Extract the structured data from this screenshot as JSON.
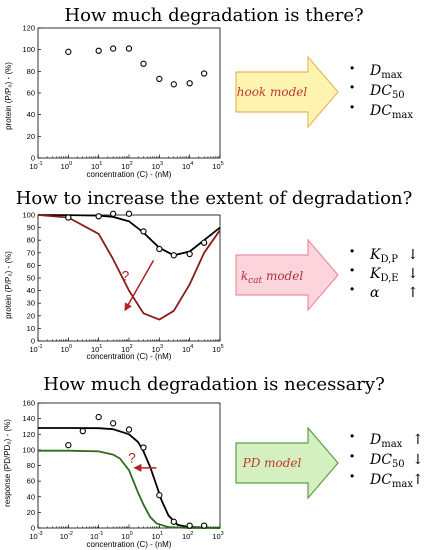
{
  "headings": [
    "How much degradation is there?",
    "How to increase the extent of degradation?",
    "How much degradation is necessary?"
  ],
  "panels": [
    {
      "ylabel": "protein (P/P₀) - (%)",
      "xlabel": "concentration (C) - (nM)",
      "model_label": "hook model",
      "arrow_fill": "#fff3b0",
      "arrow_stroke": "#e8b85c",
      "label_color": "#c0392b",
      "bullets": [
        {
          "main": "D",
          "sub": "max",
          "trend": ""
        },
        {
          "main": "DC",
          "sub": "50",
          "trend": ""
        },
        {
          "main": "DC",
          "sub": "max",
          "trend": ""
        }
      ]
    },
    {
      "ylabel": "protein (P/P₀) - (%)",
      "xlabel": "concentration (C) - (nM)",
      "model_label_k": "k",
      "model_label_sub": "cat",
      "model_label_rest": " model",
      "arrow_fill": "#fcd5dc",
      "arrow_stroke": "#e8909c",
      "label_color": "#b03040",
      "annotation": "?",
      "bullets": [
        {
          "main": "K",
          "sub": "D,P",
          "trend": "↓"
        },
        {
          "main": "K",
          "sub": "D,E",
          "trend": "↓"
        },
        {
          "main": "α",
          "sub": "",
          "trend": "↑"
        }
      ]
    },
    {
      "ylabel": "response (PD/PD₀) - (%)",
      "xlabel": "concentration (C) - (nM)",
      "model_label": "PD model",
      "arrow_fill": "#d4f0c0",
      "arrow_stroke": "#5aa040",
      "label_color": "#c0392b",
      "annotation": "?",
      "bullets": [
        {
          "main": "D",
          "sub": "max",
          "trend": "↑"
        },
        {
          "main": "DC",
          "sub": "50",
          "trend": "↓"
        },
        {
          "main": "DC",
          "sub": "max",
          "trend": "↑"
        }
      ]
    }
  ],
  "chart_data": [
    {
      "type": "scatter",
      "title": "How much degradation is there?",
      "xlabel": "concentration (C) - (nM)",
      "ylabel": "protein (P/P₀) - (%)",
      "x_scale": "log",
      "xlim_exp": [
        -1,
        5
      ],
      "ylim": [
        0,
        120
      ],
      "yticks": [
        0,
        20,
        40,
        60,
        80,
        100,
        120
      ],
      "series": [
        {
          "kind": "points",
          "x": [
            1,
            10,
            30,
            100,
            300,
            1000,
            3000,
            10000,
            30000
          ],
          "y": [
            98,
            99,
            101,
            101,
            87,
            73,
            68,
            69,
            78
          ]
        }
      ]
    },
    {
      "type": "line",
      "title": "How to increase the extent of degradation?",
      "xlabel": "concentration (C) - (nM)",
      "ylabel": "protein (P/P₀) - (%)",
      "x_scale": "log",
      "xlim_exp": [
        -1,
        5
      ],
      "ylim": [
        0,
        100
      ],
      "yticks": [
        0,
        10,
        20,
        30,
        40,
        50,
        60,
        70,
        80,
        90,
        100
      ],
      "series": [
        {
          "kind": "points",
          "x": [
            1,
            10,
            30,
            100,
            300,
            1000,
            3000,
            10000,
            30000
          ],
          "y": [
            98,
            99,
            101,
            101,
            87,
            73,
            68,
            69,
            78
          ]
        },
        {
          "kind": "line",
          "color": "#000000",
          "x": [
            0.1,
            1,
            10,
            30,
            100,
            300,
            1000,
            3000,
            10000,
            30000,
            100000
          ],
          "y": [
            100,
            99.9,
            99.5,
            98.5,
            95,
            86,
            74,
            68,
            71,
            80,
            90
          ]
        },
        {
          "kind": "line",
          "color": "#8b1a1a",
          "x": [
            0.1,
            1,
            10,
            30,
            100,
            300,
            1000,
            3000,
            10000,
            30000,
            100000
          ],
          "y": [
            100,
            98,
            85,
            65,
            40,
            22,
            17,
            24,
            45,
            70,
            88
          ]
        }
      ]
    },
    {
      "type": "line",
      "title": "How much degradation is necessary?",
      "xlabel": "concentration (C) - (nM)",
      "ylabel": "response (PD/PD₀) - (%)",
      "x_scale": "log",
      "xlim_exp": [
        -3,
        3
      ],
      "ylim": [
        0,
        160
      ],
      "yticks": [
        0,
        20,
        40,
        60,
        80,
        100,
        120,
        140,
        160
      ],
      "series": [
        {
          "kind": "points",
          "x": [
            0.01,
            0.03,
            0.1,
            0.3,
            1,
            3,
            10,
            30,
            100,
            300
          ],
          "y": [
            106,
            124,
            142,
            134,
            126,
            103,
            42,
            8,
            3,
            3
          ]
        },
        {
          "kind": "line",
          "color": "#000000",
          "x": [
            0.001,
            0.01,
            0.1,
            0.3,
            1,
            2,
            3,
            5,
            8,
            12,
            20,
            40,
            100,
            1000
          ],
          "y": [
            128,
            128,
            127.7,
            126.5,
            120,
            110,
            98,
            78,
            55,
            35,
            16,
            4,
            1,
            0
          ]
        },
        {
          "kind": "line",
          "color": "#2e6b1f",
          "x": [
            0.001,
            0.01,
            0.1,
            0.3,
            0.5,
            1,
            2,
            3,
            5,
            8,
            20,
            100,
            1000
          ],
          "y": [
            99,
            99,
            98,
            94,
            89,
            74,
            45,
            30,
            14,
            6,
            1,
            0,
            0
          ]
        }
      ]
    }
  ]
}
